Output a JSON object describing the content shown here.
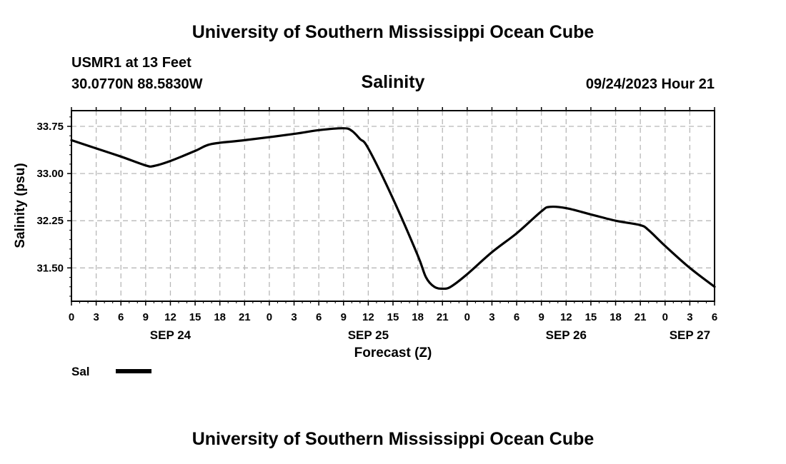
{
  "header": {
    "title_top": "University of Southern Mississippi Ocean Cube",
    "station": "USMR1 at 13 Feet",
    "coords": "30.0770N  88.5830W",
    "chart_title": "Salinity",
    "datetime": "09/24/2023 Hour 21",
    "title_bottom": "University of Southern Mississippi Ocean Cube"
  },
  "legend": {
    "label": "Sal",
    "color": "#000000"
  },
  "chart_data": {
    "type": "line",
    "title": "Salinity",
    "xlabel": "Forecast (Z)",
    "ylabel": "Salinity (psu)",
    "x_unit": "hours since SEP 24 00Z",
    "xlim": [
      0,
      78
    ],
    "ylim": [
      30.97,
      34.0
    ],
    "grid": true,
    "grid_style": "dashed",
    "x_tick_values": [
      0,
      3,
      6,
      9,
      12,
      15,
      18,
      21,
      24,
      27,
      30,
      33,
      36,
      39,
      42,
      45,
      48,
      51,
      54,
      57,
      60,
      63,
      66,
      69,
      72,
      75,
      78
    ],
    "x_tick_labels": [
      "0",
      "3",
      "6",
      "9",
      "12",
      "15",
      "18",
      "21",
      "0",
      "3",
      "6",
      "9",
      "12",
      "15",
      "18",
      "21",
      "0",
      "3",
      "6",
      "9",
      "12",
      "15",
      "18",
      "21",
      "0",
      "3",
      "6"
    ],
    "date_labels": [
      {
        "x": 12,
        "label": "SEP 24"
      },
      {
        "x": 36,
        "label": "SEP 25"
      },
      {
        "x": 60,
        "label": "SEP 26"
      },
      {
        "x": 75,
        "label": "SEP 27"
      }
    ],
    "y_tick_values": [
      31.5,
      32.25,
      33.0,
      33.75
    ],
    "y_tick_labels": [
      "31.50",
      "32.25",
      "33.00",
      "33.75"
    ],
    "series": [
      {
        "name": "Sal",
        "color": "#000000",
        "x": [
          0,
          3,
          6,
          9,
          10,
          12,
          15,
          17,
          21,
          27,
          30,
          33,
          34,
          35,
          36,
          39,
          42,
          43,
          44,
          45,
          46,
          48,
          51,
          54,
          57,
          58,
          60,
          63,
          66,
          69,
          70,
          72,
          75,
          78
        ],
        "y": [
          33.53,
          33.4,
          33.27,
          33.13,
          33.12,
          33.2,
          33.36,
          33.47,
          33.53,
          33.63,
          33.69,
          33.72,
          33.68,
          33.55,
          33.4,
          32.6,
          31.7,
          31.35,
          31.2,
          31.17,
          31.2,
          31.4,
          31.75,
          32.05,
          32.4,
          32.47,
          32.45,
          32.35,
          32.25,
          32.18,
          32.1,
          31.85,
          31.5,
          31.2
        ]
      }
    ]
  }
}
